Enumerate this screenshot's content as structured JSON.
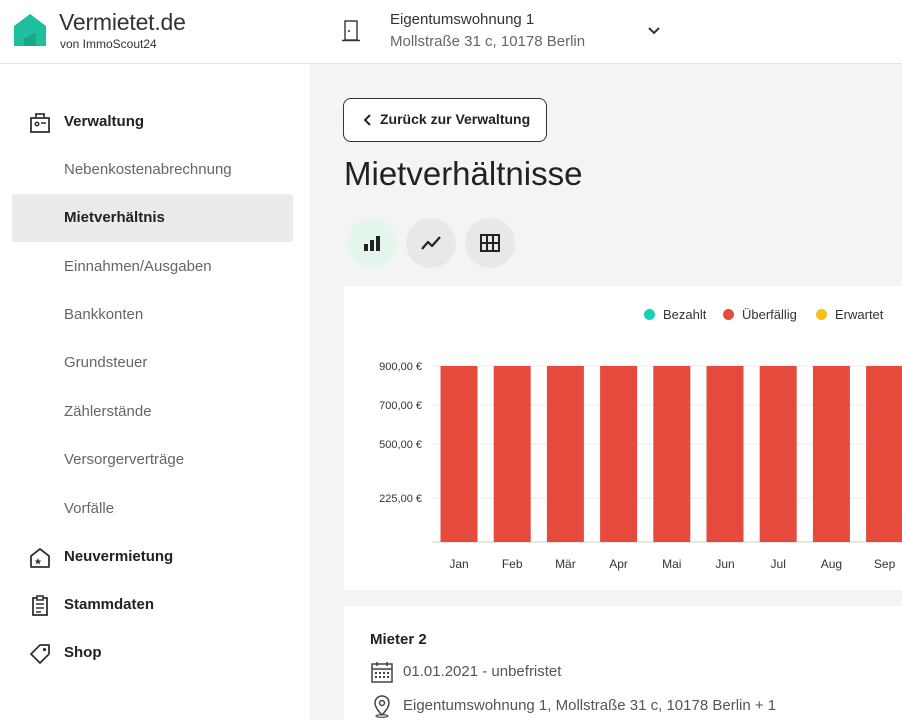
{
  "brand": {
    "name": "Vermietet.de",
    "sub": "von ImmoScout24",
    "color": "#1dbf9c"
  },
  "property": {
    "title": "Eigentumswohnung 1",
    "address": "Mollstraße 31 c, 10178 Berlin"
  },
  "sidebar": {
    "groups": [
      {
        "label": "Verwaltung",
        "icon": "building-icon"
      },
      {
        "label": "Neuvermietung",
        "icon": "house-star-icon"
      },
      {
        "label": "Stammdaten",
        "icon": "clipboard-icon"
      },
      {
        "label": "Shop",
        "icon": "tag-icon"
      }
    ],
    "items": [
      {
        "label": "Nebenkostenabrechnung"
      },
      {
        "label": "Mietverhältnis",
        "active": true
      },
      {
        "label": "Einnahmen/Ausgaben"
      },
      {
        "label": "Bankkonten"
      },
      {
        "label": "Grundsteuer"
      },
      {
        "label": "Zählerstände"
      },
      {
        "label": "Versorgerverträge"
      },
      {
        "label": "Vorfälle"
      }
    ]
  },
  "main": {
    "back_label": "Zurück zur Verwaltung",
    "title": "Mietverhältnisse",
    "views": [
      {
        "icon": "bar-chart-icon",
        "active": true
      },
      {
        "icon": "line-chart-icon",
        "active": false
      },
      {
        "icon": "table-grid-icon",
        "active": false
      }
    ]
  },
  "legend": [
    {
      "label": "Bezahlt",
      "color": "#1ccfb0"
    },
    {
      "label": "Überfällig",
      "color": "#e64a3d"
    },
    {
      "label": "Erwartet",
      "color": "#f2c21b"
    }
  ],
  "chart_data": {
    "type": "bar",
    "categories": [
      "Jan",
      "Feb",
      "Mär",
      "Apr",
      "Mai",
      "Jun",
      "Jul",
      "Aug",
      "Sep"
    ],
    "series": [
      {
        "name": "Überfällig",
        "color": "#e64a3d",
        "values": [
          900,
          900,
          900,
          900,
          900,
          900,
          900,
          900,
          900
        ]
      }
    ],
    "yticks": [
      {
        "value": 225,
        "label": "225,00 €"
      },
      {
        "value": 500,
        "label": "500,00 €"
      },
      {
        "value": 700,
        "label": "700,00 €"
      },
      {
        "value": 900,
        "label": "900,00 €"
      }
    ],
    "ylim": [
      0,
      900
    ],
    "grid": true,
    "legend_position": "top-right"
  },
  "tenant": {
    "name": "Mieter 2",
    "period": "01.01.2021 - unbefristet",
    "unit": "Eigentumswohnung 1, Mollstraße 31 c, 10178 Berlin + 1"
  }
}
